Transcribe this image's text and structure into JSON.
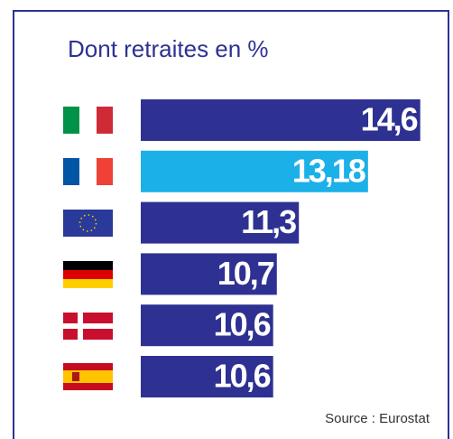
{
  "chart_data": {
    "type": "barh",
    "title": "Dont retraites en %",
    "source": "Source : Eurostat",
    "categories": [
      null,
      null,
      null,
      null,
      null,
      null
    ],
    "values": [
      14.6,
      13.18,
      11.3,
      10.7,
      10.6,
      10.6
    ],
    "value_labels": [
      "14,6",
      "13,18",
      "11,3",
      "10,7",
      "10,6",
      "10,6"
    ],
    "colors": [
      "#2e3192",
      "#1cb0e8",
      "#2e3192",
      "#2e3192",
      "#2e3192",
      "#2e3192"
    ],
    "xlim": [
      7,
      15
    ]
  }
}
